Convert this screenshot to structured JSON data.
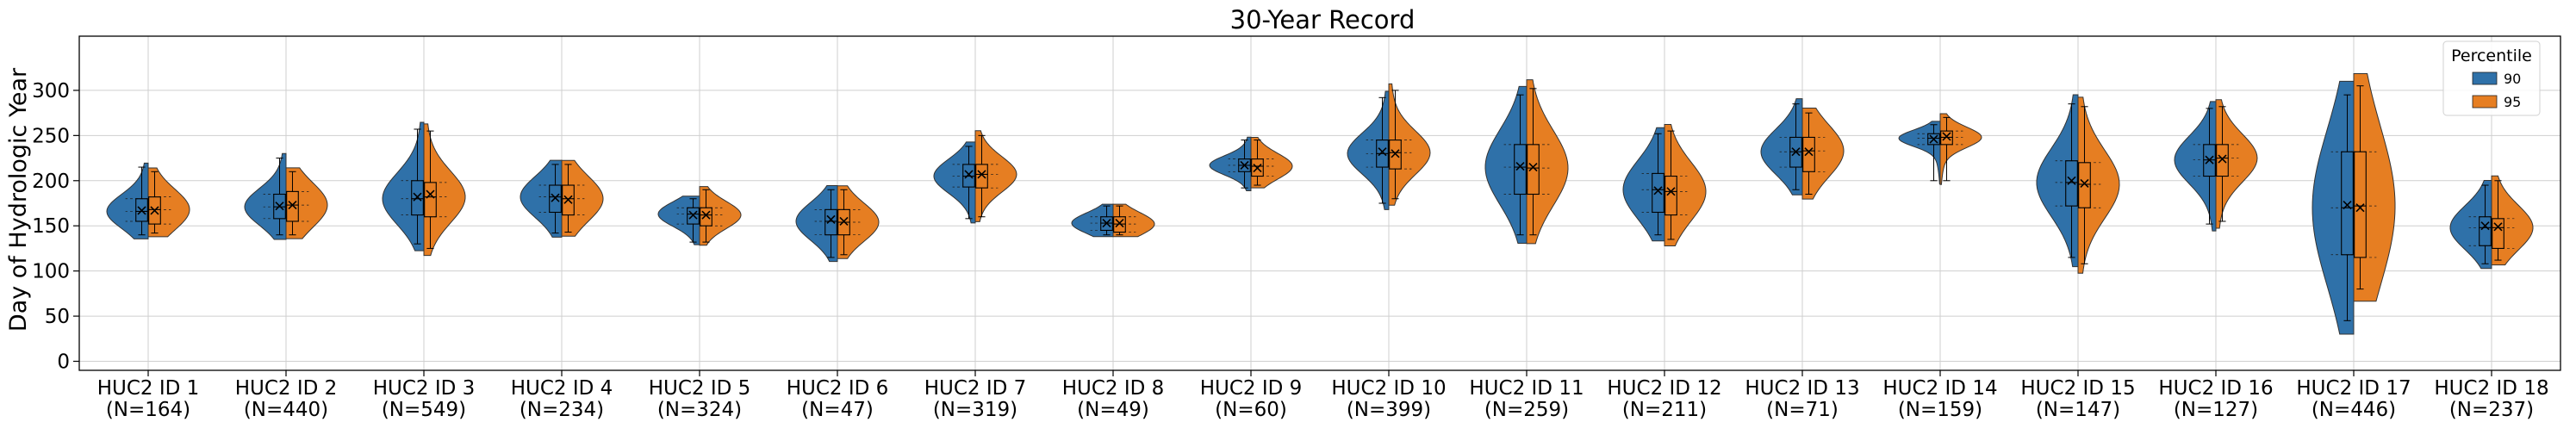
{
  "chart_data": {
    "type": "violin",
    "title": "30-Year Record",
    "xlabel": "",
    "ylabel": "Day of Hydrologic Year",
    "ylim": [
      -10,
      360
    ],
    "yticks": [
      0,
      50,
      100,
      150,
      200,
      250,
      300
    ],
    "grid": true,
    "legend": {
      "title": "Percentile",
      "placement": "top-right",
      "entries": [
        {
          "label": "90",
          "color": "#2f71a9"
        },
        {
          "label": "95",
          "color": "#e67e22"
        }
      ]
    },
    "categories": [
      "HUC2 ID 1",
      "HUC2 ID 2",
      "HUC2 ID 3",
      "HUC2 ID 4",
      "HUC2 ID 5",
      "HUC2 ID 6",
      "HUC2 ID 7",
      "HUC2 ID 8",
      "HUC2 ID 9",
      "HUC2 ID 10",
      "HUC2 ID 11",
      "HUC2 ID 12",
      "HUC2 ID 13",
      "HUC2 ID 14",
      "HUC2 ID 15",
      "HUC2 ID 16",
      "HUC2 ID 17",
      "HUC2 ID 18"
    ],
    "counts": [
      "(N=164)",
      "(N=440)",
      "(N=549)",
      "(N=234)",
      "(N=324)",
      "(N=47)",
      "(N=319)",
      "(N=49)",
      "(N=60)",
      "(N=399)",
      "(N=259)",
      "(N=211)",
      "(N=71)",
      "(N=159)",
      "(N=147)",
      "(N=127)",
      "(N=446)",
      "(N=237)"
    ],
    "series": [
      {
        "name": "90",
        "color": "#2f71a9",
        "min": [
          140,
          140,
          130,
          142,
          132,
          115,
          158,
          140,
          192,
          175,
          140,
          140,
          190,
          200,
          115,
          152,
          45,
          108
        ],
        "q1": [
          155,
          158,
          162,
          165,
          152,
          140,
          193,
          145,
          210,
          215,
          185,
          165,
          215,
          240,
          172,
          205,
          118,
          128
        ],
        "median": [
          166,
          171,
          180,
          182,
          163,
          155,
          205,
          153,
          217,
          230,
          215,
          190,
          232,
          247,
          198,
          223,
          170,
          148
        ],
        "mean": [
          167,
          172,
          182,
          181,
          162,
          157,
          207,
          153,
          217,
          232,
          216,
          189,
          232,
          246,
          200,
          223,
          173,
          150
        ],
        "q3": [
          180,
          185,
          200,
          195,
          170,
          168,
          218,
          160,
          224,
          245,
          240,
          208,
          248,
          252,
          222,
          240,
          232,
          160
        ],
        "max": [
          215,
          225,
          257,
          218,
          180,
          190,
          238,
          172,
          245,
          292,
          295,
          252,
          285,
          262,
          285,
          280,
          295,
          195
        ]
      },
      {
        "name": "95",
        "color": "#e67e22",
        "min": [
          142,
          140,
          125,
          143,
          132,
          118,
          160,
          140,
          195,
          180,
          140,
          135,
          185,
          200,
          108,
          155,
          80,
          112
        ],
        "q1": [
          152,
          155,
          160,
          162,
          150,
          140,
          192,
          143,
          205,
          213,
          185,
          162,
          210,
          240,
          170,
          205,
          115,
          125
        ],
        "median": [
          168,
          173,
          182,
          180,
          162,
          154,
          207,
          152,
          216,
          231,
          214,
          188,
          233,
          248,
          196,
          225,
          172,
          148
        ],
        "mean": [
          167,
          173,
          185,
          179,
          162,
          155,
          207,
          153,
          214,
          230,
          215,
          188,
          232,
          249,
          197,
          224,
          170,
          149
        ],
        "q3": [
          182,
          188,
          198,
          195,
          170,
          168,
          218,
          160,
          224,
          245,
          240,
          205,
          248,
          255,
          220,
          240,
          232,
          158
        ],
        "max": [
          210,
          210,
          255,
          218,
          190,
          190,
          250,
          172,
          245,
          300,
          302,
          255,
          275,
          270,
          282,
          282,
          305,
          200
        ]
      }
    ]
  }
}
